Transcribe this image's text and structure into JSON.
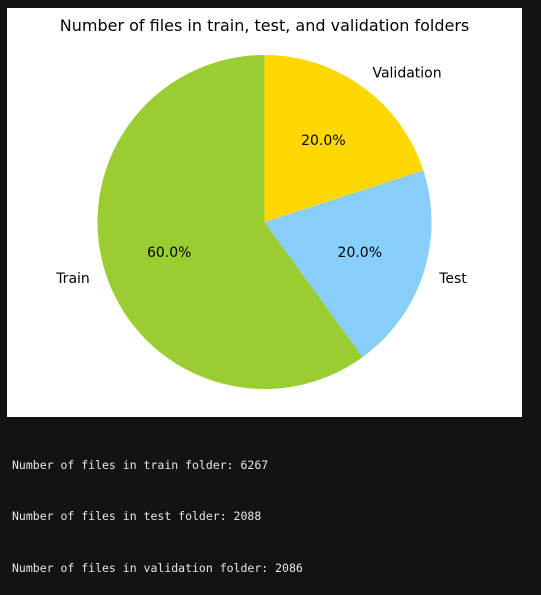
{
  "chart_data": {
    "type": "pie",
    "title": "Number of files in train, test, and validation folders",
    "categories": [
      "Train",
      "Test",
      "Validation"
    ],
    "values": [
      60.0,
      20.0,
      20.0
    ],
    "percent_labels": [
      "60.0%",
      "20.0%",
      "20.0%"
    ],
    "colors": [
      "#9acd32",
      "#87cefa",
      "#ffd700"
    ]
  },
  "output": {
    "lines": [
      "Number of files in train folder: 6267",
      "Number of files in test folder: 2088",
      "Number of files in validation folder: 2086"
    ]
  },
  "colors": {
    "output_background": "#111317",
    "figure_background": "#ffffff",
    "output_text": "#e6e6e6"
  }
}
